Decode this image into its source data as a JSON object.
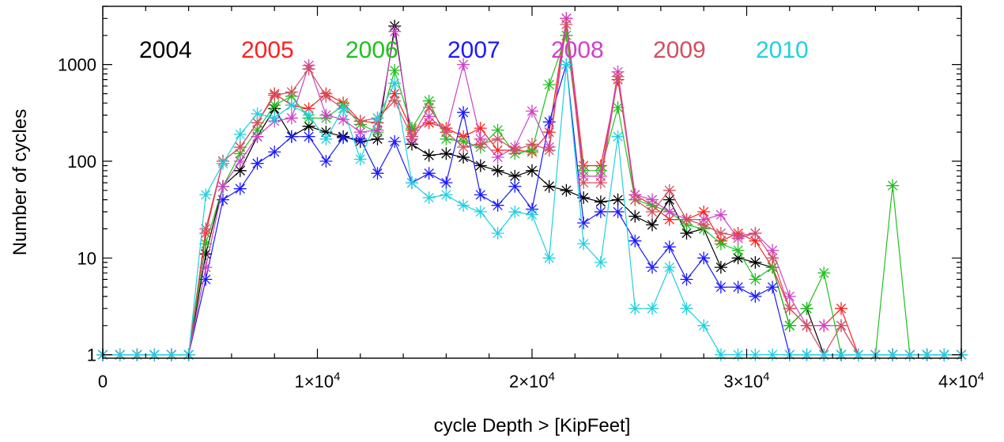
{
  "chart_data": {
    "type": "line",
    "title": "",
    "xlabel": "cycle Depth > [KipFeet]",
    "ylabel": "Number of cycles",
    "xlim": [
      0,
      40000
    ],
    "ylim": [
      0.92,
      4000
    ],
    "yscale": "log",
    "grid": false,
    "legend_position": "top, horizontal row",
    "x_tick_labels": [
      {
        "value": 0,
        "mant": "0",
        "exp": ""
      },
      {
        "value": 10000,
        "mant": "1×10",
        "exp": "4"
      },
      {
        "value": 20000,
        "mant": "2×10",
        "exp": "4"
      },
      {
        "value": 30000,
        "mant": "3×10",
        "exp": "4"
      },
      {
        "value": 40000,
        "mant": "4×10",
        "exp": "4"
      }
    ],
    "y_tick_labels": [
      {
        "value": 1,
        "label": "1"
      },
      {
        "value": 10,
        "label": "10"
      },
      {
        "value": 100,
        "label": "100"
      },
      {
        "value": 1000,
        "label": "1000"
      }
    ],
    "x": [
      0,
      800,
      1600,
      2400,
      3200,
      4000,
      4800,
      5600,
      6400,
      7200,
      8000,
      8800,
      9600,
      10400,
      11200,
      12000,
      12800,
      13600,
      14400,
      15200,
      16000,
      16800,
      17600,
      18400,
      19200,
      20000,
      20800,
      21600,
      22400,
      23200,
      24000,
      24800,
      25600,
      26400,
      27200,
      28000,
      28800,
      29600,
      30400,
      31200,
      32000,
      32800,
      33600,
      34400,
      35200,
      36000,
      36800,
      37600,
      38400,
      39200,
      40000
    ],
    "series": [
      {
        "name": "2004",
        "color": "#000000",
        "values": [
          1,
          1,
          1,
          1,
          1,
          1,
          11,
          55,
          80,
          180,
          350,
          180,
          230,
          200,
          180,
          160,
          170,
          2500,
          150,
          115,
          120,
          110,
          90,
          80,
          70,
          80,
          55,
          50,
          42,
          38,
          40,
          27,
          22,
          40,
          18,
          20,
          8,
          10,
          9,
          8,
          2,
          3,
          1,
          1,
          1,
          1,
          1,
          1,
          1,
          1,
          1
        ]
      },
      {
        "name": "2005",
        "color": "#ff2020",
        "values": [
          1,
          1,
          1,
          1,
          1,
          1,
          18,
          100,
          140,
          250,
          500,
          380,
          350,
          500,
          400,
          260,
          250,
          500,
          210,
          250,
          220,
          180,
          220,
          130,
          130,
          125,
          200,
          3000,
          90,
          90,
          700,
          45,
          35,
          25,
          25,
          30,
          15,
          18,
          15,
          8,
          3,
          2,
          2,
          3,
          1,
          1,
          1,
          1,
          1,
          1,
          1
        ]
      },
      {
        "name": "2006",
        "color": "#20c020",
        "values": [
          1,
          1,
          1,
          1,
          1,
          1,
          14,
          55,
          120,
          210,
          380,
          470,
          280,
          280,
          380,
          240,
          200,
          870,
          220,
          420,
          170,
          160,
          140,
          210,
          120,
          130,
          620,
          2000,
          80,
          80,
          360,
          40,
          35,
          30,
          22,
          20,
          14,
          12,
          6,
          8,
          2,
          3,
          7,
          1,
          1,
          1,
          56,
          1,
          1,
          1,
          1
        ]
      },
      {
        "name": "2007",
        "color": "#1a1aff",
        "values": [
          1,
          1,
          1,
          1,
          1,
          1,
          6,
          40,
          52,
          95,
          125,
          180,
          180,
          100,
          175,
          170,
          75,
          160,
          60,
          75,
          60,
          320,
          45,
          35,
          55,
          32,
          255,
          1000,
          23,
          30,
          30,
          15,
          8,
          13,
          6,
          10,
          5,
          5,
          4,
          5,
          1,
          1,
          1,
          1,
          1,
          1,
          1,
          1,
          1,
          1,
          1
        ]
      },
      {
        "name": "2008",
        "color": "#d040c8",
        "values": [
          1,
          1,
          1,
          1,
          1,
          1,
          8,
          55,
          100,
          180,
          260,
          280,
          980,
          300,
          270,
          200,
          210,
          2200,
          170,
          290,
          200,
          1000,
          170,
          110,
          140,
          330,
          140,
          3000,
          70,
          70,
          840,
          45,
          40,
          30,
          25,
          25,
          28,
          16,
          18,
          12,
          4,
          2,
          2,
          2,
          1,
          1,
          1,
          1,
          1,
          1,
          1
        ]
      },
      {
        "name": "2009",
        "color": "#d05060",
        "values": [
          1,
          1,
          1,
          1,
          1,
          1,
          20,
          100,
          140,
          250,
          480,
          520,
          900,
          470,
          350,
          260,
          280,
          420,
          180,
          360,
          200,
          140,
          150,
          170,
          130,
          150,
          130,
          2600,
          60,
          60,
          750,
          40,
          30,
          50,
          25,
          22,
          18,
          17,
          18,
          10,
          3,
          2,
          1,
          2,
          1,
          1,
          1,
          1,
          1,
          1,
          1
        ]
      },
      {
        "name": "2010",
        "color": "#20d0e0",
        "values": [
          1,
          1,
          1,
          1,
          1,
          1,
          45,
          95,
          190,
          310,
          280,
          380,
          300,
          170,
          350,
          105,
          280,
          640,
          60,
          42,
          45,
          35,
          30,
          18,
          30,
          28,
          10,
          1000,
          14,
          9,
          180,
          3,
          3,
          8,
          3,
          2,
          1,
          1,
          1,
          1,
          1,
          1,
          1,
          1,
          1,
          1,
          1,
          1,
          1,
          1,
          1
        ]
      }
    ]
  }
}
